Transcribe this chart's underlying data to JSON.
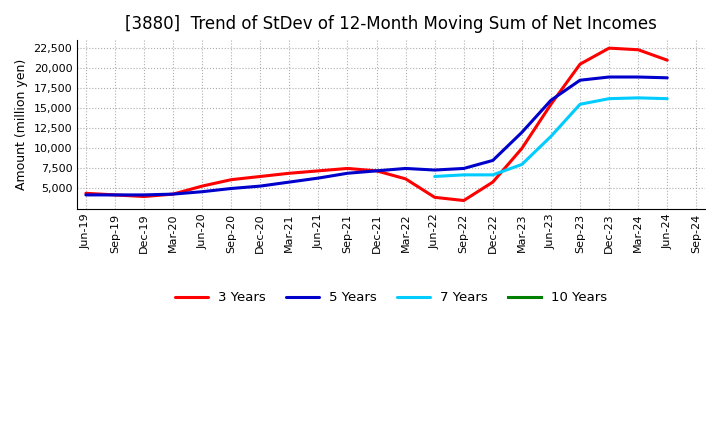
{
  "title": "[3880]  Trend of StDev of 12-Month Moving Sum of Net Incomes",
  "ylabel": "Amount (million yen)",
  "x_labels": [
    "Jun-19",
    "Sep-19",
    "Dec-19",
    "Mar-20",
    "Jun-20",
    "Sep-20",
    "Dec-20",
    "Mar-21",
    "Jun-21",
    "Sep-21",
    "Dec-21",
    "Mar-22",
    "Jun-22",
    "Sep-22",
    "Dec-22",
    "Mar-23",
    "Jun-23",
    "Sep-23",
    "Dec-23",
    "Mar-24",
    "Jun-24",
    "Sep-24"
  ],
  "series": {
    "3 Years": {
      "color": "#FF0000",
      "data": [
        4400,
        4200,
        4000,
        4300,
        5300,
        6100,
        6500,
        6900,
        7200,
        7500,
        7200,
        6200,
        3900,
        3500,
        5800,
        10000,
        15500,
        20500,
        22500,
        22300,
        21000,
        null
      ]
    },
    "5 Years": {
      "color": "#0000CC",
      "data": [
        4200,
        4200,
        4200,
        4300,
        4600,
        5000,
        5300,
        5800,
        6300,
        6900,
        7200,
        7500,
        7300,
        7500,
        8500,
        12000,
        16000,
        18500,
        18900,
        18900,
        18800,
        null
      ]
    },
    "7 Years": {
      "color": "#00CCFF",
      "data": [
        null,
        null,
        null,
        null,
        null,
        null,
        null,
        null,
        null,
        null,
        null,
        null,
        6500,
        6700,
        6700,
        8000,
        11500,
        15500,
        16200,
        16300,
        16200,
        null
      ]
    },
    "10 Years": {
      "color": "#008000",
      "data": [
        null,
        null,
        null,
        null,
        null,
        null,
        null,
        null,
        null,
        null,
        null,
        null,
        null,
        null,
        null,
        null,
        null,
        null,
        null,
        null,
        null,
        null
      ]
    }
  },
  "ylim": [
    2500,
    23500
  ],
  "yticks": [
    5000,
    7500,
    10000,
    12500,
    15000,
    17500,
    20000,
    22500
  ],
  "background_color": "#FFFFFF",
  "grid_color": "#999999",
  "title_fontsize": 12,
  "axis_fontsize": 9,
  "tick_fontsize": 8
}
